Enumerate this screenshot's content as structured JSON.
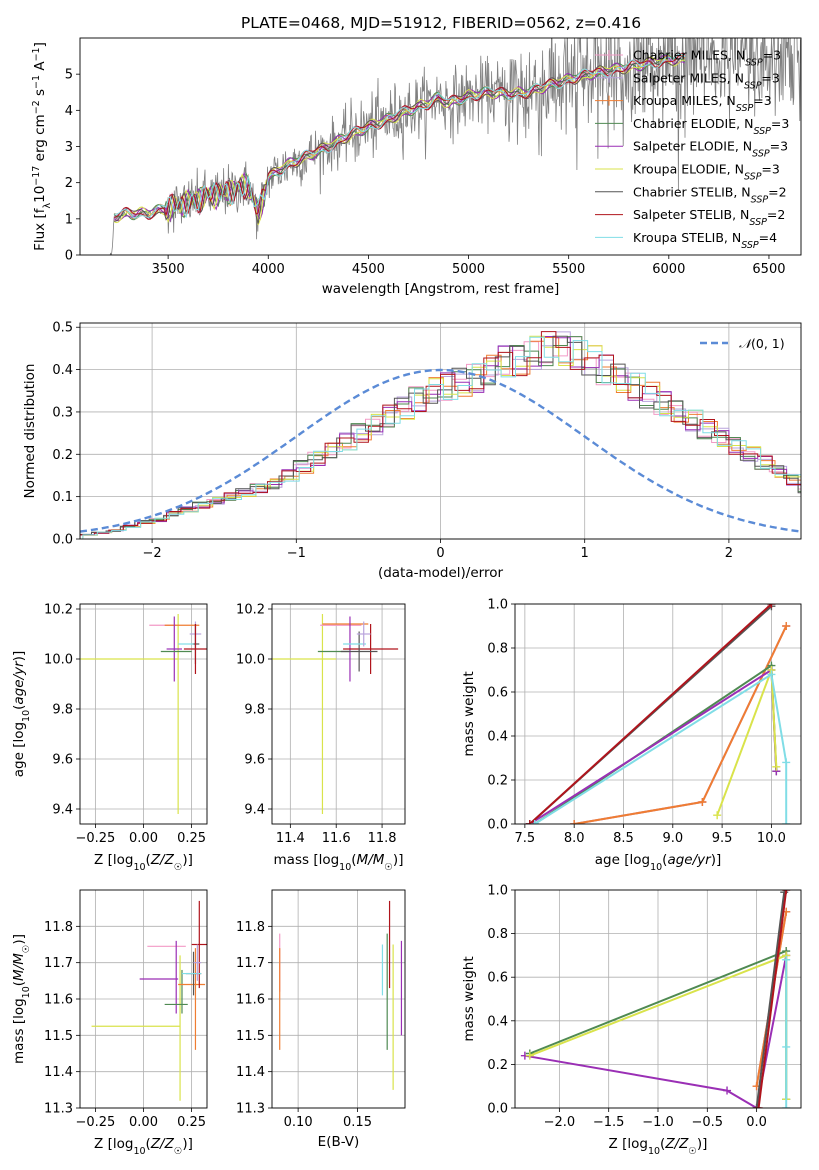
{
  "title": "PLATE=0468, MJD=51912, FIBERID=0562, z=0.416",
  "models": [
    {
      "name": "Chabrier MILES",
      "nssp": "3",
      "color": "#f29ac6"
    },
    {
      "name": "Salpeter MILES",
      "nssp": "3",
      "color": "#b9a3dc"
    },
    {
      "name": "Kroupa MILES",
      "nssp": "3",
      "color": "#ef7d32"
    },
    {
      "name": "Chabrier ELODIE",
      "nssp": "3",
      "color": "#4f8a52"
    },
    {
      "name": "Salpeter ELODIE",
      "nssp": "3",
      "color": "#9a2fb5"
    },
    {
      "name": "Kroupa ELODIE",
      "nssp": "3",
      "color": "#d9e34b"
    },
    {
      "name": "Chabrier STELIB",
      "nssp": "2",
      "color": "#555555"
    },
    {
      "name": "Salpeter STELIB",
      "nssp": "2",
      "color": "#b0141c"
    },
    {
      "name": "Kroupa STELIB",
      "nssp": "4",
      "color": "#80dde6"
    }
  ],
  "chart_data": [
    {
      "id": "spectrum",
      "type": "line",
      "xlabel": "wavelength [Angstrom, rest frame]",
      "ylabel": "Flux [f_λ 10^-17 erg cm^-2 s^-1 A^-1]",
      "xlim": [
        3060,
        6660
      ],
      "ylim": [
        0,
        6
      ],
      "xticks": [
        3500,
        4000,
        4500,
        5000,
        5500,
        6000,
        6500
      ],
      "yticks": [
        0,
        1,
        2,
        3,
        4,
        5
      ],
      "grid": false,
      "legend": "upper-right",
      "data_color": "#808080",
      "continuum": {
        "x": [
          3220,
          3230,
          3260,
          3300,
          3400,
          3500,
          3600,
          3700,
          3800,
          3900,
          3950,
          4000,
          4100,
          4200,
          4300,
          4400,
          4500,
          4600,
          4700,
          4800,
          4850,
          4900,
          5000,
          5100,
          5200,
          5300,
          5400,
          5500,
          5600,
          5700,
          5800,
          5900,
          6000
        ],
        "y": [
          0,
          1.05,
          1.1,
          1.15,
          1.15,
          1.3,
          1.45,
          1.65,
          1.75,
          1.95,
          1.1,
          2.15,
          2.5,
          2.75,
          3.0,
          3.3,
          3.55,
          3.75,
          4.0,
          4.2,
          4.35,
          4.2,
          4.4,
          4.5,
          4.45,
          4.5,
          4.7,
          4.85,
          5.0,
          5.1,
          5.2,
          5.3,
          5.4
        ]
      }
    },
    {
      "id": "residuals",
      "type": "histogram",
      "xlabel": "(data-model)/error",
      "ylabel": "Normed distribution",
      "xlim": [
        -2.5,
        2.5
      ],
      "ylim": [
        0,
        0.51
      ],
      "xticks": [
        -2,
        -1,
        0,
        1,
        2
      ],
      "yticks": [
        0.0,
        0.1,
        0.2,
        0.3,
        0.4,
        0.5
      ],
      "grid": true,
      "legend": "upper-right",
      "reference": {
        "label": "N(0,1)",
        "color": "#5b8bd6"
      },
      "bin_width": 0.1,
      "hist_values": [
        0.01,
        0.015,
        0.02,
        0.03,
        0.04,
        0.045,
        0.06,
        0.07,
        0.08,
        0.09,
        0.1,
        0.11,
        0.12,
        0.13,
        0.15,
        0.17,
        0.19,
        0.21,
        0.23,
        0.25,
        0.27,
        0.29,
        0.31,
        0.33,
        0.35,
        0.36,
        0.37,
        0.38,
        0.4,
        0.42,
        0.42,
        0.44,
        0.45,
        0.45,
        0.44,
        0.42,
        0.4,
        0.38,
        0.36,
        0.34,
        0.32,
        0.3,
        0.28,
        0.26,
        0.24,
        0.22,
        0.2,
        0.18,
        0.16,
        0.14,
        0.12,
        0.1,
        0.09,
        0.08,
        0.07,
        0.06,
        0.05,
        0.04,
        0.03,
        0.025
      ],
      "hist_start": -2.5
    },
    {
      "id": "Z_age",
      "type": "scatter",
      "xlabel": "Z [log10(Z/Z☉)]",
      "ylabel": "age [log10(age/yr)]",
      "xlim": [
        -0.33,
        0.33
      ],
      "ylim": [
        9.34,
        10.22
      ],
      "xticks": [
        -0.25,
        0.0,
        0.25
      ],
      "yticks": [
        9.4,
        9.6,
        9.8,
        10.0,
        10.2
      ],
      "grid": true
    },
    {
      "id": "mass_age",
      "type": "scatter",
      "xlabel": "mass [log10(M/M☉)]",
      "ylabel": "",
      "xlim": [
        11.32,
        11.9
      ],
      "ylim": [
        9.34,
        10.22
      ],
      "xticks": [
        11.4,
        11.6,
        11.8
      ],
      "yticks": [
        9.4,
        9.6,
        9.8,
        10.0,
        10.2
      ],
      "grid": true
    },
    {
      "id": "age_weight",
      "type": "line",
      "xlabel": "age [log10(age/yr)]",
      "ylabel": "mass weight",
      "xlim": [
        7.4,
        10.3
      ],
      "ylim": [
        0,
        1
      ],
      "xticks": [
        7.5,
        8.0,
        8.5,
        9.0,
        9.5,
        10.0
      ],
      "yticks": [
        0.0,
        0.2,
        0.4,
        0.6,
        0.8,
        1.0
      ],
      "grid": true,
      "series": [
        {
          "model": 0,
          "x": [
            8.0,
            9.3,
            10.15
          ],
          "y": [
            0.0,
            0.1,
            0.9
          ]
        },
        {
          "model": 1,
          "x": [
            8.0,
            9.3,
            10.15
          ],
          "y": [
            0.0,
            0.1,
            0.9
          ]
        },
        {
          "model": 2,
          "x": [
            8.0,
            9.3,
            10.15
          ],
          "y": [
            0.0,
            0.1,
            0.9
          ]
        },
        {
          "model": 3,
          "x": [
            7.6,
            10.0,
            10.05
          ],
          "y": [
            0.0,
            0.72,
            0.24
          ]
        },
        {
          "model": 4,
          "x": [
            7.55,
            10.0,
            10.05
          ],
          "y": [
            0.0,
            0.7,
            0.24
          ]
        },
        {
          "model": 5,
          "x": [
            9.45,
            10.0,
            10.05
          ],
          "y": [
            0.04,
            0.7,
            0.26
          ]
        },
        {
          "model": 6,
          "x": [
            7.55,
            10.0
          ],
          "y": [
            0.0,
            0.99
          ]
        },
        {
          "model": 7,
          "x": [
            7.55,
            10.0
          ],
          "y": [
            0.0,
            1.0
          ]
        },
        {
          "model": 8,
          "x": [
            7.6,
            10.0,
            10.15,
            10.15
          ],
          "y": [
            0.0,
            0.68,
            0.28,
            0.0
          ]
        }
      ]
    },
    {
      "id": "Z_mass",
      "type": "scatter",
      "xlabel": "Z [log10(Z/Z☉)]",
      "ylabel": "mass [log10(M/M☉)]",
      "xlim": [
        -0.33,
        0.33
      ],
      "ylim": [
        11.3,
        11.9
      ],
      "xticks": [
        -0.25,
        0.0,
        0.25
      ],
      "yticks": [
        11.3,
        11.4,
        11.5,
        11.6,
        11.7,
        11.8
      ],
      "grid": true
    },
    {
      "id": "ebv_mass",
      "type": "scatter",
      "xlabel": "E(B-V)",
      "ylabel": "",
      "xlim": [
        0.078,
        0.19
      ],
      "ylim": [
        11.3,
        11.9
      ],
      "xticks": [
        0.1,
        0.15
      ],
      "yticks": [
        11.3,
        11.4,
        11.5,
        11.6,
        11.7,
        11.8
      ],
      "grid": true,
      "points": [
        {
          "model": 0,
          "x": 0.0845,
          "y": 11.7,
          "yerr": 0.08
        },
        {
          "model": 2,
          "x": 0.0845,
          "y": 11.6,
          "yerr": 0.14
        },
        {
          "model": 8,
          "x": 0.171,
          "y": 11.68,
          "yerr": 0.07
        },
        {
          "model": 3,
          "x": 0.175,
          "y": 11.62,
          "yerr": 0.16
        },
        {
          "model": 7,
          "x": 0.177,
          "y": 11.75,
          "yerr": 0.12
        },
        {
          "model": 5,
          "x": 0.18,
          "y": 11.55,
          "yerr": 0.2
        },
        {
          "model": 4,
          "x": 0.187,
          "y": 11.63,
          "yerr": 0.13
        }
      ]
    },
    {
      "id": "Z_weight",
      "type": "line",
      "xlabel": "Z [log10(Z/Z☉)]",
      "ylabel": "mass weight",
      "xlim": [
        -2.45,
        0.45
      ],
      "ylim": [
        0,
        1
      ],
      "xticks": [
        -2.0,
        -1.5,
        -1.0,
        -0.5,
        0.0
      ],
      "yticks": [
        0.0,
        0.2,
        0.4,
        0.6,
        0.8,
        1.0
      ],
      "grid": true,
      "series": [
        {
          "model": 0,
          "x": [
            0.0,
            0.3
          ],
          "y": [
            0.1,
            0.9
          ]
        },
        {
          "model": 1,
          "x": [
            0.0,
            0.3
          ],
          "y": [
            0.1,
            0.9
          ]
        },
        {
          "model": 2,
          "x": [
            0.0,
            0.3
          ],
          "y": [
            0.1,
            0.9
          ]
        },
        {
          "model": 3,
          "x": [
            -2.3,
            0.3,
            0.3
          ],
          "y": [
            0.25,
            0.72,
            0.04
          ]
        },
        {
          "model": 4,
          "x": [
            -2.35,
            -0.3,
            0.0,
            0.3
          ],
          "y": [
            0.24,
            0.08,
            0.0,
            0.7
          ]
        },
        {
          "model": 5,
          "x": [
            -2.3,
            0.3,
            0.3
          ],
          "y": [
            0.24,
            0.7,
            0.04
          ]
        },
        {
          "model": 6,
          "x": [
            0.0,
            0.28
          ],
          "y": [
            0.0,
            0.99
          ]
        },
        {
          "model": 7,
          "x": [
            0.02,
            0.3
          ],
          "y": [
            0.0,
            1.0
          ]
        },
        {
          "model": 8,
          "x": [
            0.3,
            0.3,
            0.3
          ],
          "y": [
            0.0,
            0.28,
            0.68
          ]
        }
      ]
    }
  ]
}
